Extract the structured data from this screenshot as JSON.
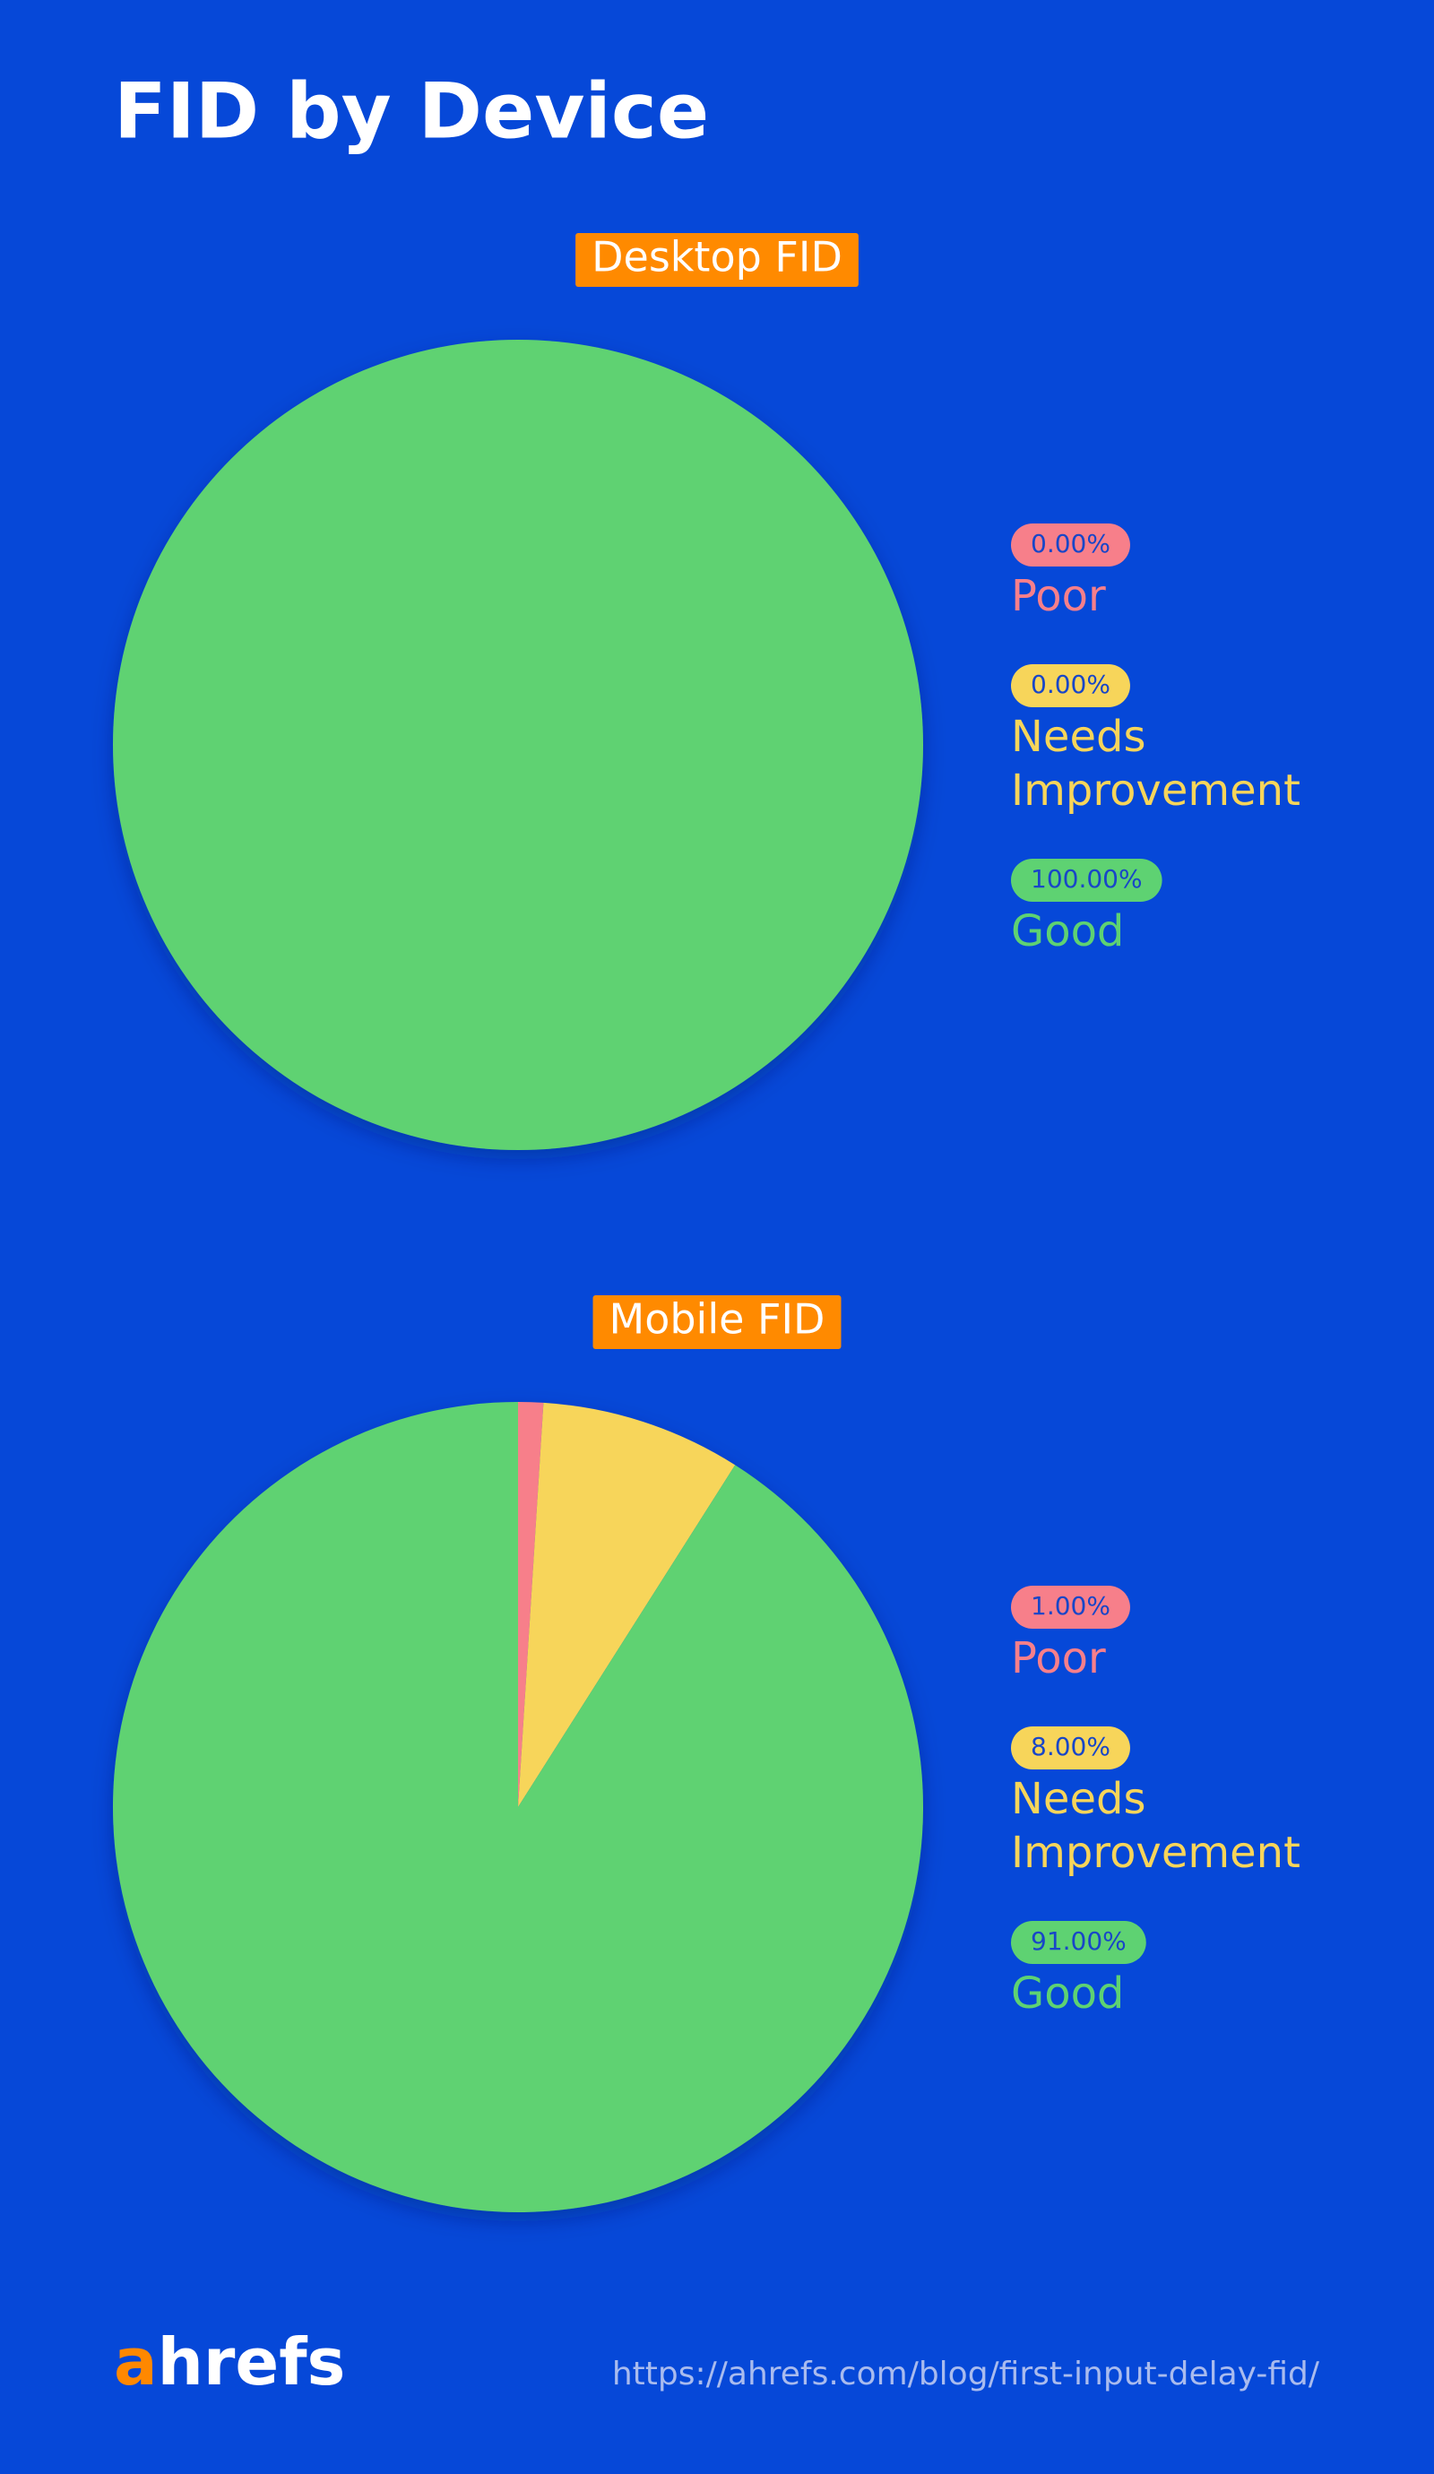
{
  "title": "FID by Device",
  "chart_data": [
    {
      "type": "pie",
      "title": "Desktop FID",
      "categories": [
        "Poor",
        "Needs Improvement",
        "Good"
      ],
      "values": [
        0,
        0,
        100
      ],
      "value_labels": [
        "0.00%",
        "0.00%",
        "100.00%"
      ],
      "colors": [
        "#f77f8a",
        "#f7d55a",
        "#5ed272"
      ]
    },
    {
      "type": "pie",
      "title": "Mobile FID",
      "categories": [
        "Poor",
        "Needs Improvement",
        "Good"
      ],
      "values": [
        1,
        8,
        91
      ],
      "value_labels": [
        "1.00%",
        "8.00%",
        "91.00%"
      ],
      "colors": [
        "#f77f8a",
        "#f7d55a",
        "#5ed272"
      ]
    }
  ],
  "footer": {
    "logo": "ahrefs",
    "url": "https://ahrefs.com/blog/first-input-delay-fid/"
  }
}
